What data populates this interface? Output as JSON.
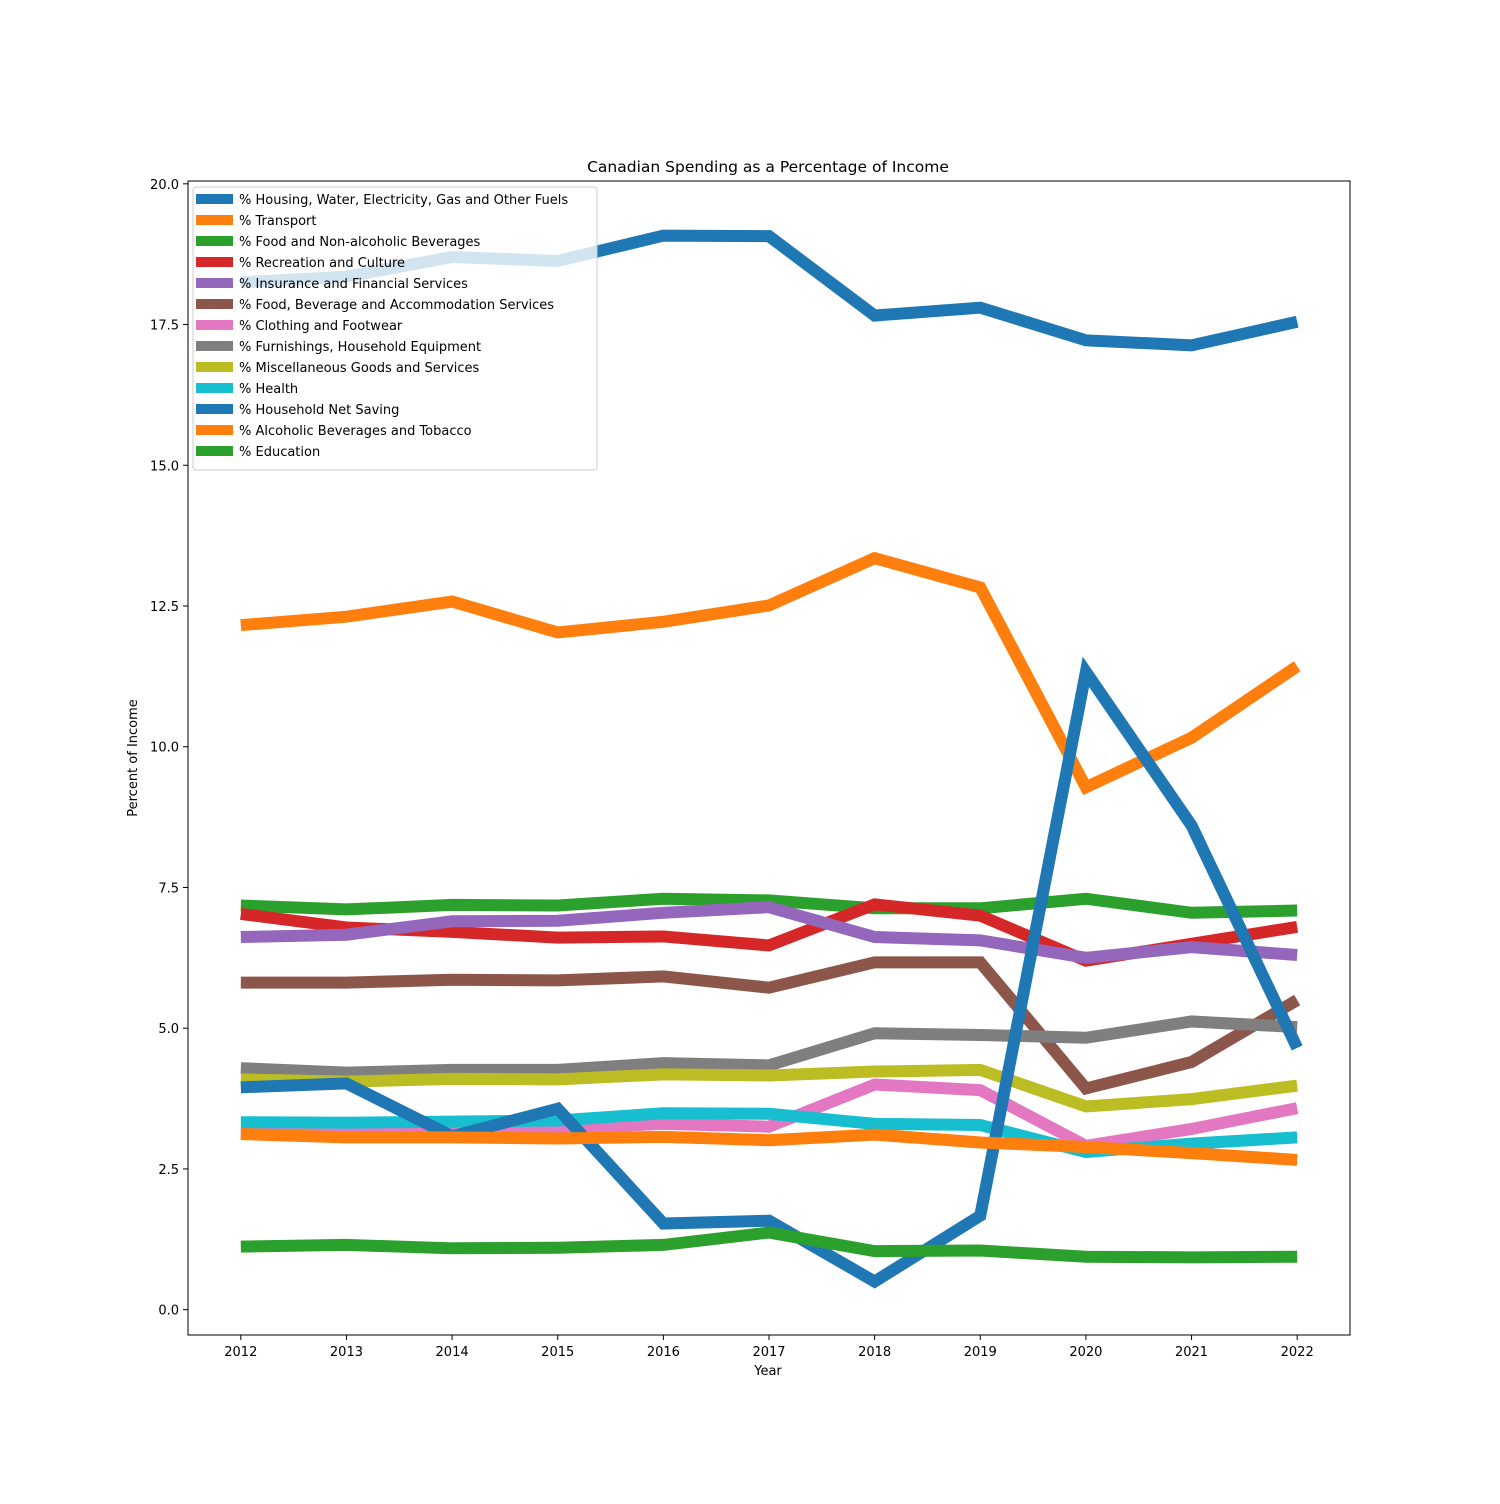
{
  "chart_data": {
    "type": "line",
    "title": "Canadian Spending as a Percentage of Income",
    "xlabel": "Year",
    "ylabel": "Percent of Income",
    "x": [
      2012,
      2013,
      2014,
      2015,
      2016,
      2017,
      2018,
      2019,
      2020,
      2021,
      2022
    ],
    "x_tick_labels": [
      "2012",
      "2013",
      "2014",
      "2015",
      "2016",
      "2017",
      "2018",
      "2019",
      "2020",
      "2021",
      "2022"
    ],
    "ylim": [
      -0.45,
      20.05
    ],
    "y_ticks": [
      0.0,
      2.5,
      5.0,
      7.5,
      10.0,
      12.5,
      15.0,
      17.5,
      20.0
    ],
    "y_tick_labels": [
      "0.0",
      "2.5",
      "5.0",
      "7.5",
      "10.0",
      "12.5",
      "15.0",
      "17.5",
      "20.0"
    ],
    "grid": false,
    "legend_position": "top-left",
    "series": [
      {
        "name": "% Housing, Water, Electricity, Gas and Other Fuels",
        "color": "#1f77b4",
        "values": [
          18.25,
          18.35,
          18.7,
          18.63,
          19.08,
          19.07,
          17.66,
          17.8,
          17.22,
          17.13,
          17.55
        ]
      },
      {
        "name": "% Transport",
        "color": "#ff7f0e",
        "values": [
          12.16,
          12.31,
          12.58,
          12.03,
          12.22,
          12.51,
          13.35,
          12.83,
          9.28,
          10.16,
          11.43
        ]
      },
      {
        "name": "% Food and Non-alcoholic Beverages",
        "color": "#2ca02c",
        "values": [
          7.18,
          7.11,
          7.19,
          7.18,
          7.3,
          7.27,
          7.13,
          7.13,
          7.3,
          7.05,
          7.09
        ]
      },
      {
        "name": "% Recreation and Culture",
        "color": "#d62728",
        "values": [
          7.03,
          6.79,
          6.71,
          6.61,
          6.63,
          6.47,
          7.2,
          7.0,
          6.2,
          6.5,
          6.8
        ]
      },
      {
        "name": "% Insurance and Financial Services",
        "color": "#9467bd",
        "values": [
          6.62,
          6.66,
          6.9,
          6.91,
          7.05,
          7.15,
          6.62,
          6.56,
          6.25,
          6.44,
          6.3
        ]
      },
      {
        "name": "% Food, Beverage and Accommodation Services",
        "color": "#8c564b",
        "values": [
          5.81,
          5.81,
          5.86,
          5.85,
          5.92,
          5.72,
          6.17,
          6.17,
          3.93,
          4.4,
          5.5
        ]
      },
      {
        "name": "% Clothing and Footwear",
        "color": "#e377c2",
        "values": [
          3.12,
          3.14,
          3.16,
          3.22,
          3.3,
          3.25,
          4.0,
          3.9,
          2.91,
          3.21,
          3.58
        ]
      },
      {
        "name": "% Furnishings, Household Equipment",
        "color": "#7f7f7f",
        "values": [
          4.29,
          4.21,
          4.26,
          4.26,
          4.38,
          4.34,
          4.91,
          4.88,
          4.83,
          5.12,
          5.02
        ]
      },
      {
        "name": "% Miscellaneous Goods and Services",
        "color": "#bcbd22",
        "values": [
          4.09,
          4.05,
          4.1,
          4.09,
          4.18,
          4.16,
          4.23,
          4.26,
          3.61,
          3.74,
          3.98
        ]
      },
      {
        "name": "% Health",
        "color": "#17becf",
        "values": [
          3.33,
          3.32,
          3.34,
          3.36,
          3.49,
          3.48,
          3.3,
          3.28,
          2.8,
          2.95,
          3.06
        ]
      },
      {
        "name": "% Household Net Saving",
        "color": "#1f77b4",
        "values": [
          3.95,
          4.02,
          3.08,
          3.57,
          1.53,
          1.58,
          0.5,
          1.67,
          11.33,
          8.6,
          4.65
        ]
      },
      {
        "name": "% Alcoholic Beverages and Tobacco",
        "color": "#ff7f0e",
        "values": [
          3.12,
          3.06,
          3.06,
          3.04,
          3.07,
          3.01,
          3.11,
          2.97,
          2.89,
          2.78,
          2.66
        ]
      },
      {
        "name": "% Education",
        "color": "#2ca02c",
        "values": [
          1.12,
          1.15,
          1.09,
          1.1,
          1.15,
          1.37,
          1.04,
          1.05,
          0.94,
          0.93,
          0.94
        ]
      }
    ]
  }
}
